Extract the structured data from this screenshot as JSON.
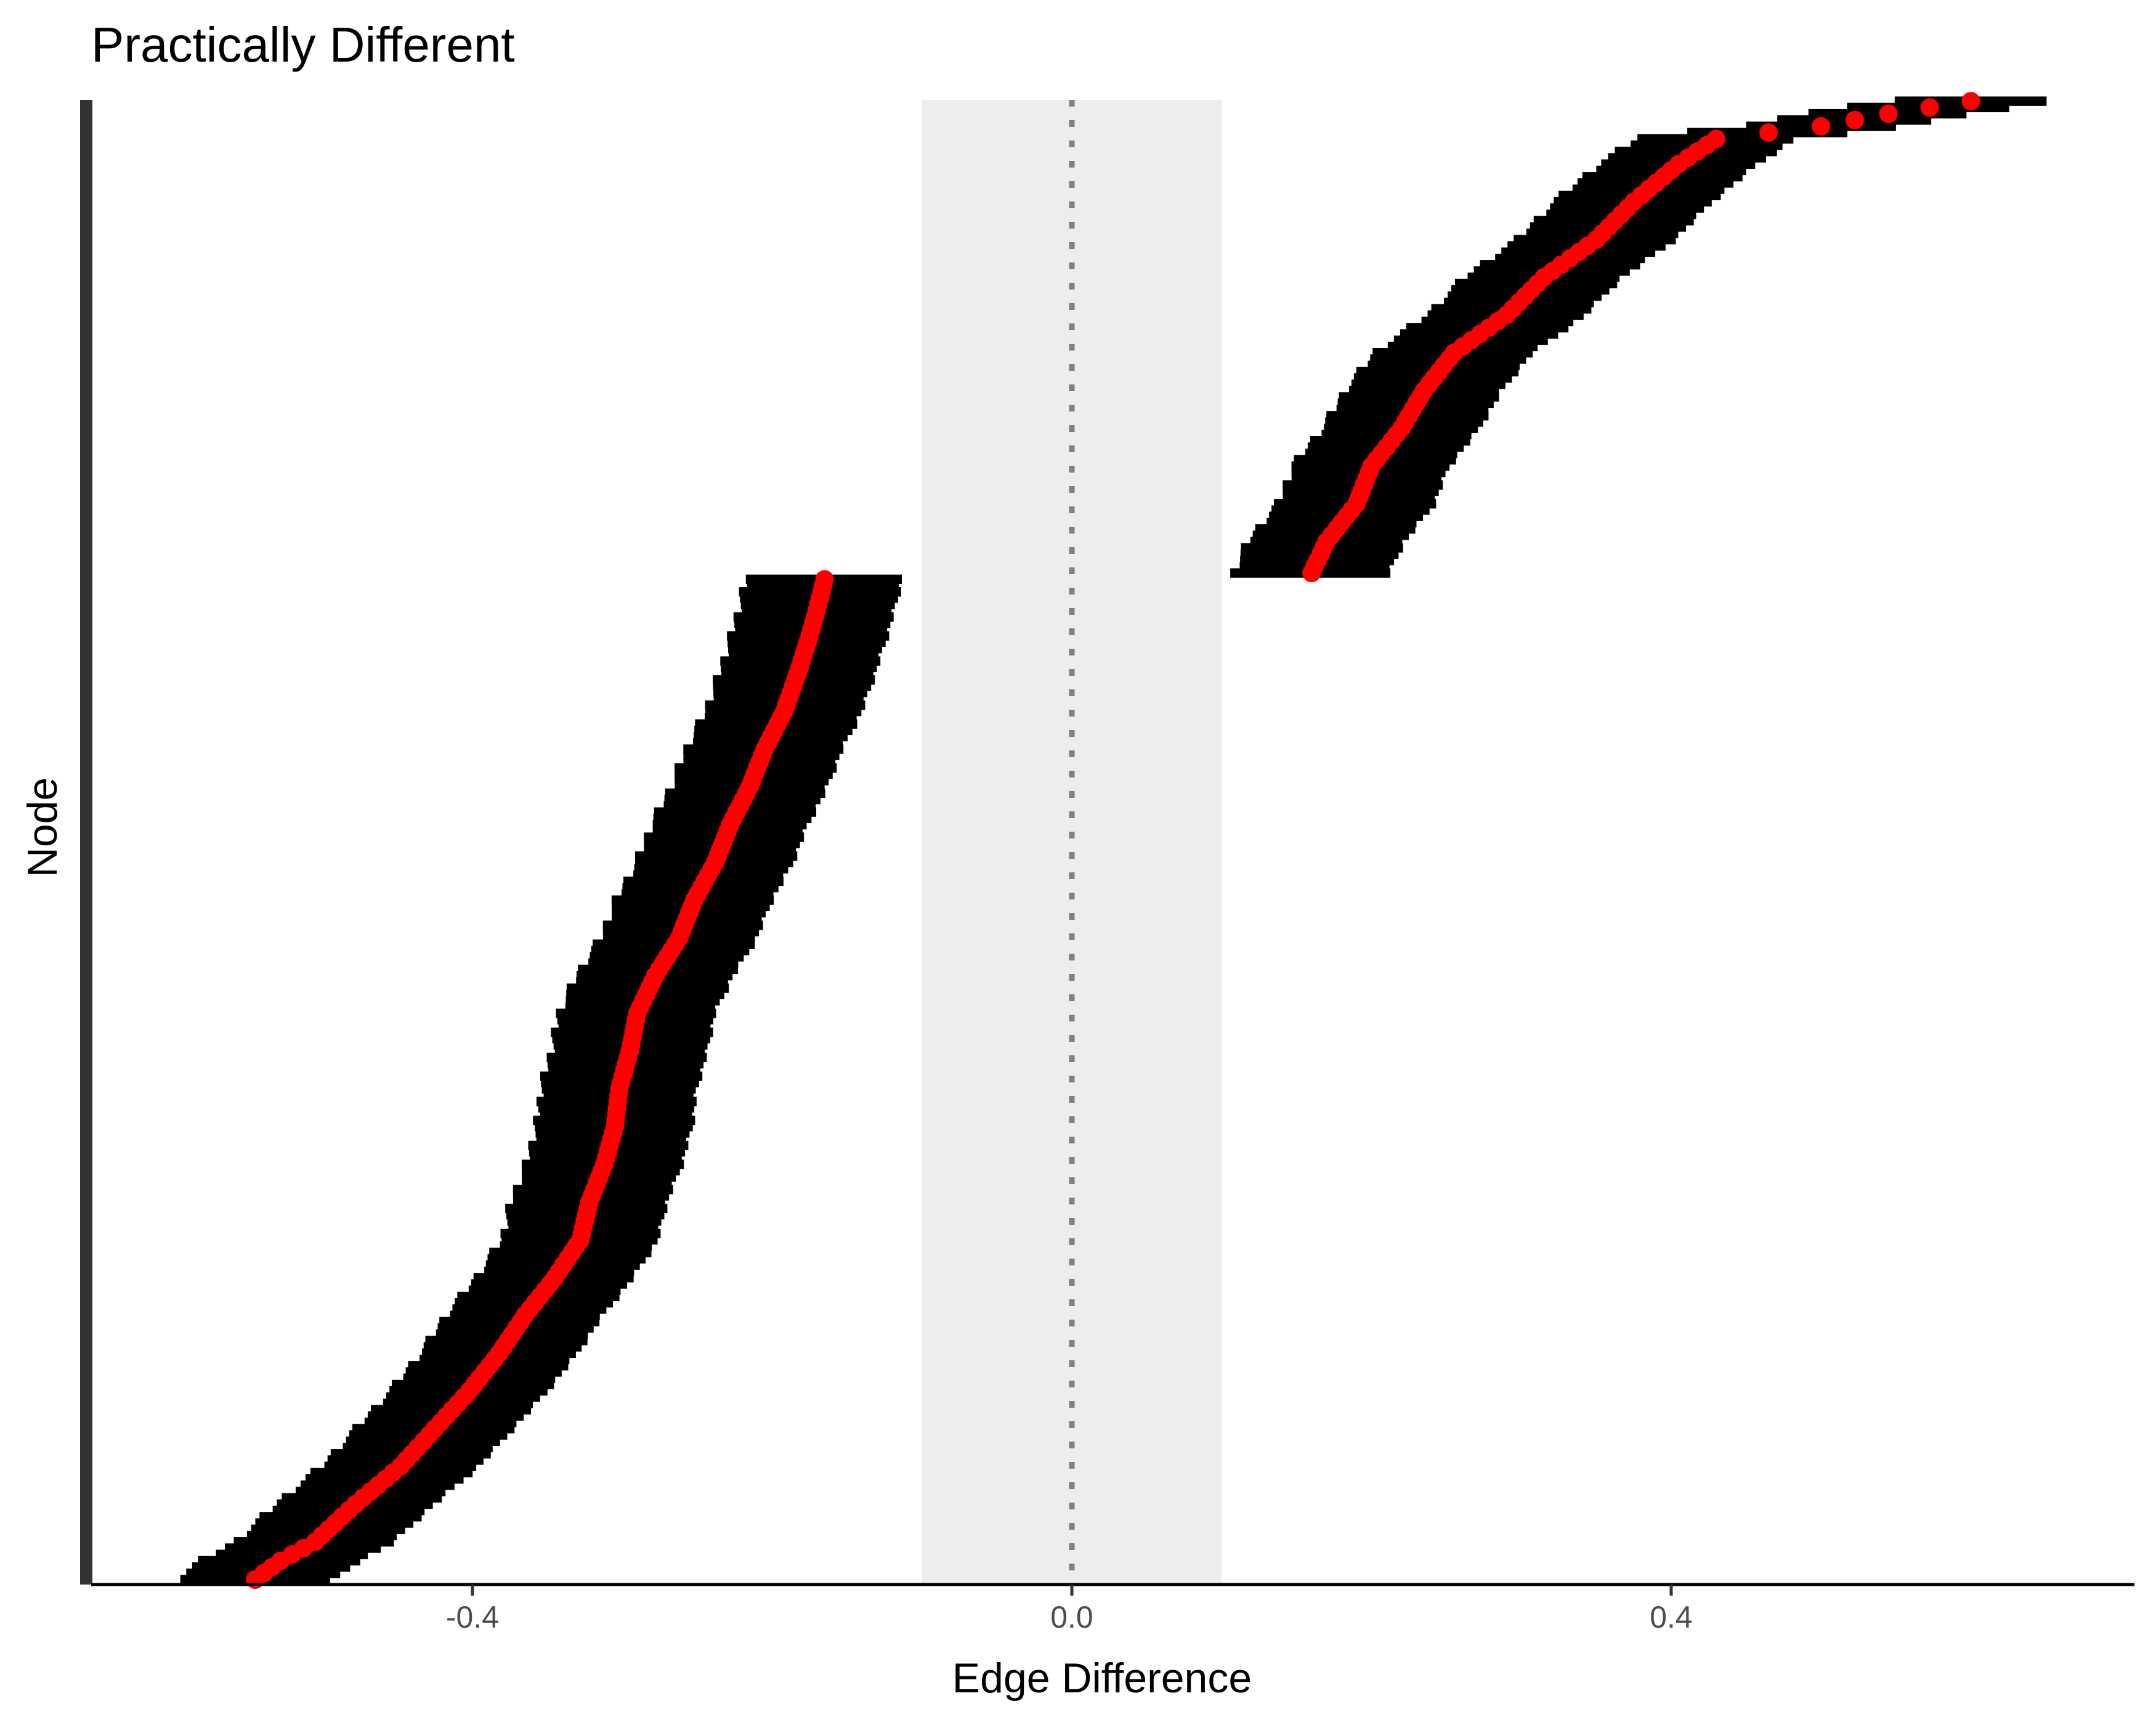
{
  "chart_data": {
    "type": "scatter",
    "title": "Practically Different",
    "xlabel": "Edge Difference",
    "ylabel": "Node",
    "xlim": [
      -0.655,
      0.7
    ],
    "x_ticks": [
      -0.4,
      0.0,
      0.4
    ],
    "x_tick_labels": [
      "-0.4",
      "0.0",
      "0.4"
    ],
    "y_ticks_shown": false,
    "rope": [
      -0.1,
      0.1
    ],
    "reference_line_x": 0.0,
    "grid": false,
    "legend": "none",
    "n_rows": 236,
    "negative_count": 160,
    "negative_estimates": [
      [
        0,
        -0.545
      ],
      [
        3,
        -0.528
      ],
      [
        6,
        -0.505
      ],
      [
        12,
        -0.478
      ],
      [
        18,
        -0.448
      ],
      [
        24,
        -0.425
      ],
      [
        30,
        -0.402
      ],
      [
        36,
        -0.382
      ],
      [
        42,
        -0.365
      ],
      [
        48,
        -0.345
      ],
      [
        54,
        -0.328
      ],
      [
        60,
        -0.322
      ],
      [
        66,
        -0.312
      ],
      [
        72,
        -0.305
      ],
      [
        78,
        -0.302
      ],
      [
        84,
        -0.295
      ],
      [
        90,
        -0.29
      ],
      [
        96,
        -0.278
      ],
      [
        102,
        -0.262
      ],
      [
        108,
        -0.252
      ],
      [
        114,
        -0.238
      ],
      [
        120,
        -0.228
      ],
      [
        126,
        -0.215
      ],
      [
        132,
        -0.205
      ],
      [
        138,
        -0.192
      ],
      [
        144,
        -0.183
      ],
      [
        150,
        -0.175
      ],
      [
        156,
        -0.168
      ],
      [
        159,
        -0.165
      ]
    ],
    "negative_interval_halfwidth": 0.05,
    "positive_estimates": [
      [
        160,
        0.16
      ],
      [
        165,
        0.17
      ],
      [
        171,
        0.19
      ],
      [
        177,
        0.2
      ],
      [
        183,
        0.22
      ],
      [
        189,
        0.235
      ],
      [
        195,
        0.255
      ],
      [
        201,
        0.29
      ],
      [
        207,
        0.315
      ],
      [
        213,
        0.35
      ],
      [
        219,
        0.375
      ],
      [
        225,
        0.405
      ],
      [
        229,
        0.43
      ],
      [
        231,
        0.5
      ],
      [
        233,
        0.545
      ],
      [
        235,
        0.6
      ]
    ],
    "positive_interval_halfwidth": 0.05,
    "colors": {
      "point": "#ff0000",
      "interval": "#000000",
      "rope_band": "#ededed",
      "reference_line": "#808080",
      "axis": "#000000",
      "left_axis_bar": "#333333"
    }
  }
}
